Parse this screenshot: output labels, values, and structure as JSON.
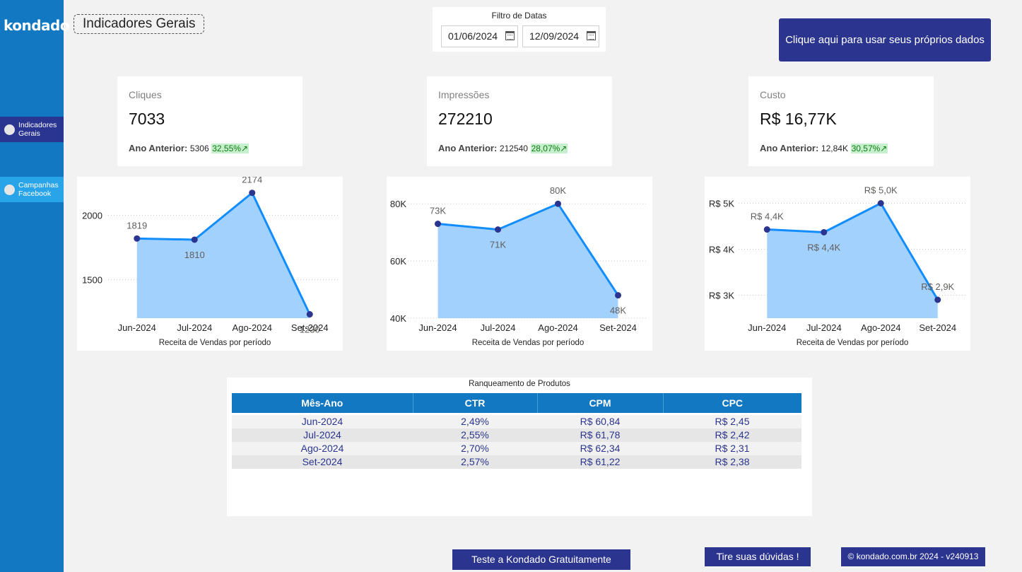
{
  "sidebar": {
    "logo": "kondado",
    "items": [
      {
        "label": "Indicadores Gerais",
        "active": true
      },
      {
        "label": "Campanhas Facebook",
        "active": false
      }
    ]
  },
  "header": {
    "title": "Indicadores Gerais",
    "date_filter": {
      "title": "Filtro de Datas",
      "start": "01/06/2024",
      "end": "12/09/2024"
    },
    "cta_label": "Clique aqui para usar seus próprios dados"
  },
  "kpis": [
    {
      "label": "Cliques",
      "value": "7033",
      "prev_label": "Ano Anterior:",
      "prev_value": "5306",
      "change": "32,55%"
    },
    {
      "label": "Impressões",
      "value": "272210",
      "prev_label": "Ano Anterior:",
      "prev_value": "212540",
      "change": "28,07%"
    },
    {
      "label": "Custo",
      "value": "R$ 16,77K",
      "prev_label": "Ano Anterior:",
      "prev_value": "12,84K",
      "change": "30,57%"
    }
  ],
  "colors": {
    "line": "#118dff",
    "area": "#a3d1fd",
    "point": "#2b3590",
    "accent": "#1378c2",
    "button": "#2b3590",
    "positive": "#c6efce"
  },
  "chart_data": [
    {
      "type": "area",
      "categories": [
        "Jun-2024",
        "Jul-2024",
        "Ago-2024",
        "Set-2024"
      ],
      "values": [
        1819,
        1810,
        2174,
        1230
      ],
      "value_labels": [
        "1819",
        "1810",
        "2174",
        "1230"
      ],
      "xlabel": "Receita de Vendas por período",
      "yticks": [
        1500,
        2000
      ],
      "ytick_labels": [
        "1500",
        "2000"
      ],
      "ylim": [
        1200,
        2200
      ],
      "grid": true
    },
    {
      "type": "area",
      "categories": [
        "Jun-2024",
        "Jul-2024",
        "Ago-2024",
        "Set-2024"
      ],
      "values": [
        73000,
        71000,
        80000,
        48000
      ],
      "value_labels": [
        "73K",
        "71K",
        "80K",
        "48K"
      ],
      "xlabel": "Receita de Vendas por período",
      "yticks": [
        40000,
        60000,
        80000
      ],
      "ytick_labels": [
        "40K",
        "60K",
        "80K"
      ],
      "ylim": [
        40000,
        85000
      ],
      "grid": true
    },
    {
      "type": "area",
      "categories": [
        "Jun-2024",
        "Jul-2024",
        "Ago-2024",
        "Set-2024"
      ],
      "values": [
        4430,
        4370,
        5000,
        2900
      ],
      "value_labels": [
        "R$ 4,4K",
        "R$ 4,4K",
        "R$ 5,0K",
        "R$ 2,9K"
      ],
      "xlabel": "Receita de Vendas por período",
      "yticks": [
        3000,
        4000,
        5000
      ],
      "ytick_labels": [
        "R$ 3K",
        "R$ 4K",
        "R$ 5K"
      ],
      "ylim": [
        2500,
        5300
      ],
      "grid": true
    }
  ],
  "table": {
    "title": "Ranqueamento de Produtos",
    "columns": [
      "Mês-Ano",
      "CTR",
      "CPM",
      "CPC"
    ],
    "rows": [
      [
        "Jun-2024",
        "2,49%",
        "R$ 60,84",
        "R$ 2,45"
      ],
      [
        "Jul-2024",
        "2,55%",
        "R$ 61,78",
        "R$ 2,42"
      ],
      [
        "Ago-2024",
        "2,70%",
        "R$ 62,34",
        "R$ 2,31"
      ],
      [
        "Set-2024",
        "2,57%",
        "R$ 61,22",
        "R$ 2,38"
      ]
    ]
  },
  "footer": {
    "trial_label": "Teste a Kondado Gratuitamente",
    "help_label": "Tire suas dúvidas !",
    "copyright": "© kondado.com.br 2024 - v240913"
  }
}
